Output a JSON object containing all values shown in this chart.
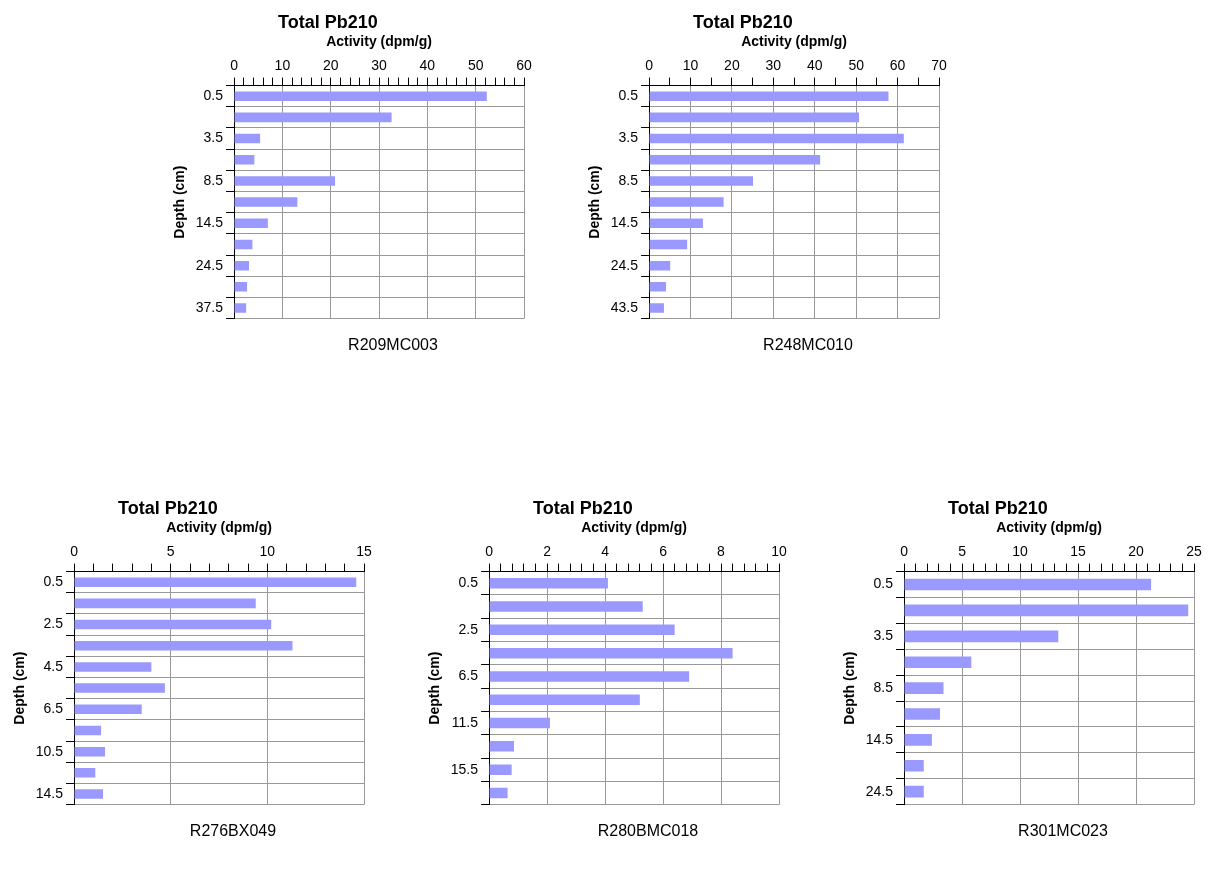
{
  "chart_data": [
    {
      "type": "bar",
      "orientation": "horizontal",
      "title": "Total Pb210",
      "xlabel": "Activity (dpm/g)",
      "ylabel": "Depth (cm)",
      "annotations": [
        "R209MC003"
      ],
      "color": "#9999ff",
      "grid": true,
      "categories": [
        "0.5",
        null,
        "3.5",
        null,
        "8.5",
        null,
        "14.5",
        null,
        "24.5",
        null,
        "37.5"
      ],
      "values": [
        52.3,
        32.6,
        5.4,
        4.2,
        20.9,
        13.1,
        7.0,
        3.8,
        3.1,
        2.7,
        2.5
      ],
      "xlim": [
        0,
        60
      ],
      "xticks": [
        0,
        {
          "value": 2,
          "label": null
        },
        {
          "value": 4,
          "label": null
        },
        {
          "value": 6,
          "label": null
        },
        {
          "value": 8,
          "label": null
        },
        10,
        {
          "value": 12,
          "label": null
        },
        {
          "value": 14,
          "label": null
        },
        {
          "value": 16,
          "label": null
        },
        {
          "value": 18,
          "label": null
        },
        20,
        {
          "value": 22,
          "label": null
        },
        {
          "value": 24,
          "label": null
        },
        {
          "value": 26,
          "label": null
        },
        {
          "value": 28,
          "label": null
        },
        30,
        {
          "value": 32,
          "label": null
        },
        {
          "value": 34,
          "label": null
        },
        {
          "value": 36,
          "label": null
        },
        {
          "value": 38,
          "label": null
        },
        40,
        {
          "value": 42,
          "label": null
        },
        {
          "value": 44,
          "label": null
        },
        {
          "value": 46,
          "label": null
        },
        {
          "value": 48,
          "label": null
        },
        50,
        {
          "value": 52,
          "label": null
        },
        {
          "value": 54,
          "label": null
        },
        {
          "value": 56,
          "label": null
        },
        {
          "value": 58,
          "label": null
        },
        60
      ]
    },
    {
      "type": "bar",
      "orientation": "horizontal",
      "title": "Total Pb210",
      "xlabel": "Activity (dpm/g)",
      "ylabel": "Depth (cm)",
      "annotations": [
        "R248MC010"
      ],
      "color": "#9999ff",
      "grid": true,
      "categories": [
        "0.5",
        null,
        "3.5",
        null,
        "8.5",
        null,
        "14.5",
        null,
        "24.5",
        null,
        "43.5"
      ],
      "values": [
        57.8,
        50.7,
        61.5,
        41.3,
        25.1,
        18.0,
        13.0,
        9.2,
        5.1,
        4.1,
        3.6
      ],
      "xlim": [
        0,
        70
      ],
      "xticks": [
        0,
        {
          "value": 5,
          "label": null
        },
        10,
        {
          "value": 15,
          "label": null
        },
        20,
        {
          "value": 25,
          "label": null
        },
        30,
        {
          "value": 35,
          "label": null
        },
        40,
        {
          "value": 45,
          "label": null
        },
        50,
        {
          "value": 55,
          "label": null
        },
        60,
        {
          "value": 65,
          "label": null
        },
        70
      ]
    },
    {
      "type": "bar",
      "orientation": "horizontal",
      "title": "Total Pb210",
      "xlabel": "Activity (dpm/g)",
      "ylabel": "Depth (cm)",
      "annotations": [
        "R276BX049"
      ],
      "color": "#9999ff",
      "grid": true,
      "categories": [
        "0.5",
        null,
        "2.5",
        null,
        "4.5",
        null,
        "6.5",
        null,
        "10.5",
        null,
        "14.5"
      ],
      "values": [
        14.6,
        9.4,
        10.2,
        11.3,
        4.0,
        4.7,
        3.5,
        1.4,
        1.6,
        1.1,
        1.5
      ],
      "xlim": [
        0,
        15
      ],
      "xticks": [
        0,
        {
          "value": 1,
          "label": null
        },
        {
          "value": 2,
          "label": null
        },
        {
          "value": 3,
          "label": null
        },
        {
          "value": 4,
          "label": null
        },
        5,
        {
          "value": 6,
          "label": null
        },
        {
          "value": 7,
          "label": null
        },
        {
          "value": 8,
          "label": null
        },
        {
          "value": 9,
          "label": null
        },
        10,
        {
          "value": 11,
          "label": null
        },
        {
          "value": 12,
          "label": null
        },
        {
          "value": 13,
          "label": null
        },
        {
          "value": 14,
          "label": null
        },
        15
      ]
    },
    {
      "type": "bar",
      "orientation": "horizontal",
      "title": "Total Pb210",
      "xlabel": "Activity (dpm/g)",
      "ylabel": "Depth (cm)",
      "annotations": [
        "R280BMC018"
      ],
      "color": "#9999ff",
      "grid": true,
      "categories": [
        "0.5",
        null,
        "2.5",
        null,
        "6.5",
        null,
        "11.5",
        null,
        "15.5",
        null
      ],
      "values": [
        4.1,
        5.3,
        6.4,
        8.4,
        6.9,
        5.2,
        2.1,
        0.86,
        0.78,
        0.64
      ],
      "xlim": [
        0,
        10
      ],
      "xticks": [
        0,
        {
          "value": 0.4,
          "label": null
        },
        {
          "value": 0.8,
          "label": null
        },
        {
          "value": 1.2,
          "label": null
        },
        {
          "value": 1.6,
          "label": null
        },
        2,
        {
          "value": 2.4,
          "label": null
        },
        {
          "value": 2.8,
          "label": null
        },
        {
          "value": 3.2,
          "label": null
        },
        {
          "value": 3.6,
          "label": null
        },
        4,
        {
          "value": 4.4,
          "label": null
        },
        {
          "value": 4.8,
          "label": null
        },
        {
          "value": 5.2,
          "label": null
        },
        {
          "value": 5.6,
          "label": null
        },
        6,
        {
          "value": 6.4,
          "label": null
        },
        {
          "value": 6.8,
          "label": null
        },
        {
          "value": 7.2,
          "label": null
        },
        {
          "value": 7.6,
          "label": null
        },
        8,
        {
          "value": 8.4,
          "label": null
        },
        {
          "value": 8.8,
          "label": null
        },
        {
          "value": 9.2,
          "label": null
        },
        {
          "value": 9.6,
          "label": null
        },
        10
      ]
    },
    {
      "type": "bar",
      "orientation": "horizontal",
      "title": "Total Pb210",
      "xlabel": "Activity (dpm/g)",
      "ylabel": "Depth (cm)",
      "annotations": [
        "R301MC023"
      ],
      "color": "#9999ff",
      "grid": true,
      "categories": [
        "0.5",
        null,
        "3.5",
        null,
        "8.5",
        null,
        "14.5",
        null,
        "24.5"
      ],
      "values": [
        21.3,
        24.5,
        13.3,
        5.8,
        3.4,
        3.1,
        2.4,
        1.7,
        1.7
      ],
      "xlim": [
        0,
        25
      ],
      "xticks": [
        0,
        {
          "value": 1,
          "label": null
        },
        {
          "value": 2,
          "label": null
        },
        {
          "value": 3,
          "label": null
        },
        {
          "value": 4,
          "label": null
        },
        5,
        {
          "value": 6,
          "label": null
        },
        {
          "value": 7,
          "label": null
        },
        {
          "value": 8,
          "label": null
        },
        {
          "value": 9,
          "label": null
        },
        10,
        {
          "value": 11,
          "label": null
        },
        {
          "value": 12,
          "label": null
        },
        {
          "value": 13,
          "label": null
        },
        {
          "value": 14,
          "label": null
        },
        15,
        {
          "value": 16,
          "label": null
        },
        {
          "value": 17,
          "label": null
        },
        {
          "value": 18,
          "label": null
        },
        {
          "value": 19,
          "label": null
        },
        20,
        {
          "value": 21,
          "label": null
        },
        {
          "value": 22,
          "label": null
        },
        {
          "value": 23,
          "label": null
        },
        {
          "value": 24,
          "label": null
        },
        25
      ]
    }
  ]
}
